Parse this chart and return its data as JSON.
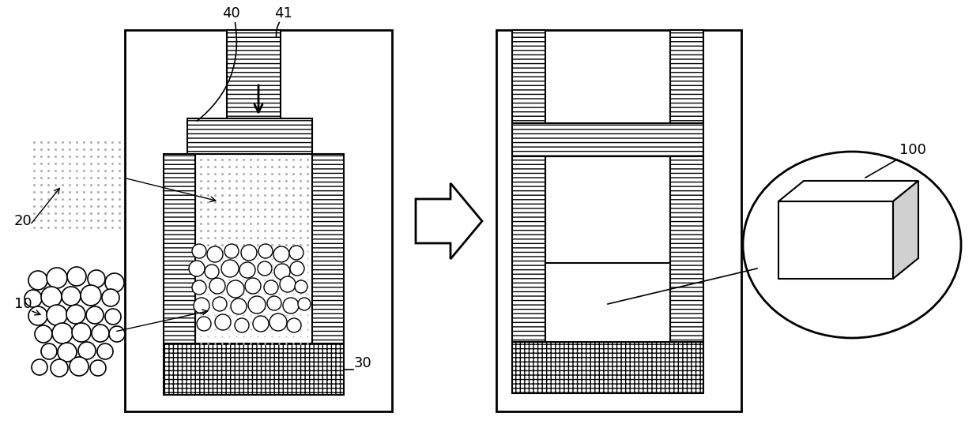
{
  "bg": "#ffffff",
  "lc": "#000000",
  "figsize": [
    12.4,
    5.61
  ],
  "dpi": 100,
  "label_10": "10",
  "label_20": "20",
  "label_30": "30",
  "label_40": "40",
  "label_41": "41",
  "label_100": "100"
}
